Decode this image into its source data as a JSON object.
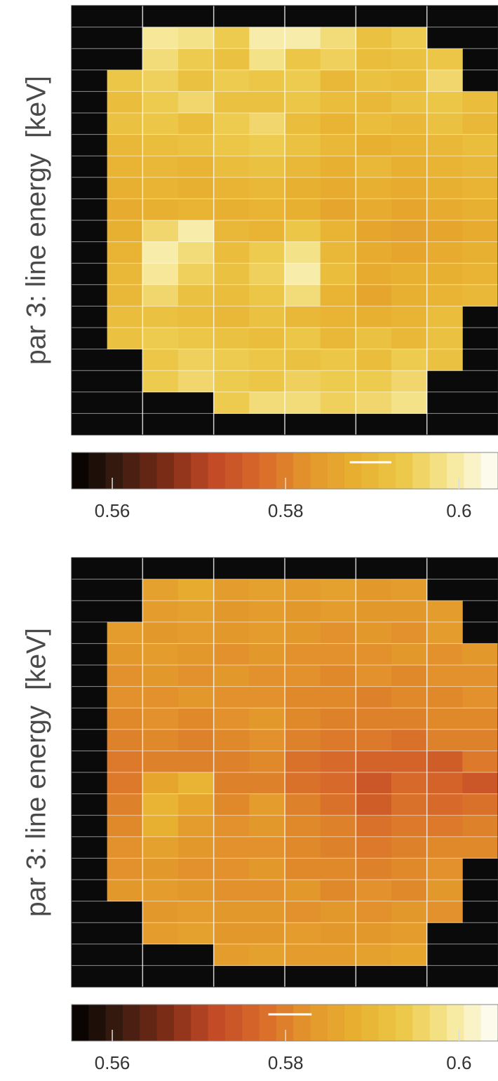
{
  "chart_data": [
    {
      "type": "heatmap",
      "ylabel": "par 3: line energy  [keV]",
      "grid": true,
      "clim": [
        0.5553,
        0.6045
      ],
      "colorbar_ticks": [
        0.56,
        0.58,
        0.6
      ],
      "colorbar_levels": 25,
      "colormap": [
        "#000000",
        "#3a1c10",
        "#7c2c16",
        "#c24a26",
        "#d86a2a",
        "#e3962c",
        "#e8b030",
        "#ecc848",
        "#f6e898",
        "#ffffff"
      ],
      "mean_marker": 0.5898,
      "mean_marker_halfwidth": 0.0024,
      "values": [
        [
          null,
          null,
          null,
          null,
          null,
          null,
          null,
          null,
          null,
          null,
          null,
          null
        ],
        [
          null,
          null,
          0.599,
          0.598,
          0.594,
          0.6,
          0.6,
          0.597,
          0.592,
          0.594,
          null,
          null
        ],
        [
          null,
          null,
          0.597,
          0.594,
          0.592,
          0.598,
          0.593,
          0.595,
          0.591,
          0.592,
          0.593,
          null
        ],
        [
          null,
          0.593,
          0.595,
          0.592,
          0.594,
          0.593,
          0.594,
          0.59,
          0.592,
          0.591,
          0.596,
          null
        ],
        [
          null,
          0.591,
          0.594,
          0.596,
          0.592,
          0.592,
          0.593,
          0.591,
          0.59,
          0.592,
          0.593,
          0.591
        ],
        [
          null,
          0.592,
          0.593,
          0.591,
          0.594,
          0.596,
          0.591,
          0.589,
          0.591,
          0.59,
          0.592,
          0.59
        ],
        [
          null,
          0.59,
          0.591,
          0.592,
          0.593,
          0.594,
          0.592,
          0.59,
          0.588,
          0.589,
          0.59,
          0.591
        ],
        [
          null,
          0.589,
          0.59,
          0.589,
          0.591,
          0.592,
          0.59,
          0.588,
          0.59,
          0.588,
          0.589,
          0.59
        ],
        [
          null,
          0.588,
          0.589,
          0.588,
          0.589,
          0.59,
          0.588,
          0.587,
          0.588,
          0.587,
          0.588,
          0.589
        ],
        [
          null,
          0.587,
          0.588,
          0.589,
          0.588,
          0.589,
          0.588,
          0.586,
          0.587,
          0.586,
          0.587,
          0.588
        ],
        [
          null,
          0.588,
          0.596,
          0.6,
          0.59,
          0.589,
          0.593,
          0.589,
          0.586,
          0.585,
          0.586,
          0.587
        ],
        [
          null,
          0.589,
          0.6,
          0.597,
          0.591,
          0.594,
          0.598,
          0.59,
          0.587,
          0.586,
          0.587,
          0.588
        ],
        [
          null,
          0.59,
          0.599,
          0.595,
          0.592,
          0.595,
          0.6,
          0.591,
          0.587,
          0.588,
          0.588,
          0.589
        ],
        [
          null,
          0.59,
          0.596,
          0.592,
          0.591,
          0.593,
          0.597,
          0.589,
          0.586,
          0.588,
          0.589,
          0.59
        ],
        [
          null,
          0.591,
          0.592,
          0.591,
          0.59,
          0.592,
          0.59,
          0.589,
          0.588,
          0.589,
          0.591,
          null
        ],
        [
          null,
          0.592,
          0.594,
          0.593,
          0.592,
          0.591,
          0.593,
          0.59,
          0.592,
          0.59,
          0.592,
          null
        ],
        [
          null,
          null,
          0.593,
          0.595,
          0.594,
          0.593,
          0.592,
          0.593,
          0.591,
          0.594,
          0.592,
          null
        ],
        [
          null,
          null,
          0.594,
          0.596,
          0.594,
          0.593,
          0.595,
          0.594,
          0.594,
          0.596,
          null,
          null
        ],
        [
          null,
          null,
          null,
          null,
          0.594,
          0.597,
          0.597,
          0.595,
          0.596,
          0.598,
          null,
          null
        ],
        [
          null,
          null,
          null,
          null,
          null,
          null,
          null,
          null,
          null,
          null,
          null,
          null
        ]
      ]
    },
    {
      "type": "heatmap",
      "ylabel": "par 3: line energy  [keV]",
      "grid": true,
      "clim": [
        0.5553,
        0.6045
      ],
      "colorbar_ticks": [
        0.56,
        0.58,
        0.6
      ],
      "colorbar_levels": 25,
      "colormap": [
        "#000000",
        "#3a1c10",
        "#7c2c16",
        "#c24a26",
        "#d86a2a",
        "#e3962c",
        "#e8b030",
        "#ecc848",
        "#f6e898",
        "#ffffff"
      ],
      "mean_marker": 0.5805,
      "mean_marker_halfwidth": 0.0025,
      "values": [
        [
          null,
          null,
          null,
          null,
          null,
          null,
          null,
          null,
          null,
          null,
          null,
          null
        ],
        [
          null,
          null,
          0.585,
          0.587,
          0.584,
          0.585,
          0.584,
          0.585,
          0.583,
          0.584,
          null,
          null
        ],
        [
          null,
          null,
          0.584,
          0.585,
          0.583,
          0.584,
          0.583,
          0.584,
          0.583,
          0.583,
          0.584,
          null
        ],
        [
          null,
          0.584,
          0.583,
          0.584,
          0.583,
          0.584,
          0.583,
          0.582,
          0.583,
          0.582,
          0.584,
          null
        ],
        [
          null,
          0.583,
          0.584,
          0.583,
          0.582,
          0.583,
          0.582,
          0.582,
          0.582,
          0.583,
          0.582,
          0.583
        ],
        [
          null,
          0.582,
          0.583,
          0.582,
          0.583,
          0.582,
          0.582,
          0.581,
          0.582,
          0.581,
          0.582,
          0.582
        ],
        [
          null,
          0.582,
          0.582,
          0.583,
          0.582,
          0.582,
          0.581,
          0.581,
          0.58,
          0.581,
          0.581,
          0.582
        ],
        [
          null,
          0.581,
          0.582,
          0.581,
          0.582,
          0.583,
          0.581,
          0.58,
          0.58,
          0.58,
          0.581,
          0.581
        ],
        [
          null,
          0.58,
          0.581,
          0.58,
          0.581,
          0.582,
          0.58,
          0.579,
          0.579,
          0.578,
          0.58,
          0.58
        ],
        [
          null,
          0.579,
          0.58,
          0.58,
          0.58,
          0.581,
          0.578,
          0.577,
          0.576,
          0.576,
          0.575,
          0.579
        ],
        [
          null,
          0.579,
          0.586,
          0.589,
          0.58,
          0.58,
          0.578,
          0.577,
          0.574,
          0.577,
          0.576,
          0.574
        ],
        [
          null,
          0.58,
          0.589,
          0.586,
          0.581,
          0.584,
          0.58,
          0.578,
          0.575,
          0.578,
          0.577,
          0.578
        ],
        [
          null,
          0.581,
          0.588,
          0.584,
          0.582,
          0.583,
          0.581,
          0.58,
          0.578,
          0.579,
          0.579,
          0.58
        ],
        [
          null,
          0.582,
          0.585,
          0.583,
          0.582,
          0.582,
          0.581,
          0.58,
          0.579,
          0.58,
          0.581,
          0.581
        ],
        [
          null,
          0.582,
          0.583,
          0.582,
          0.582,
          0.583,
          0.581,
          0.581,
          0.58,
          0.581,
          0.582,
          null
        ],
        [
          null,
          0.583,
          0.584,
          0.583,
          0.582,
          0.582,
          0.583,
          0.581,
          0.582,
          0.581,
          0.583,
          null
        ],
        [
          null,
          null,
          0.583,
          0.584,
          0.583,
          0.583,
          0.582,
          0.583,
          0.582,
          0.583,
          0.582,
          null
        ],
        [
          null,
          null,
          0.584,
          0.585,
          0.583,
          0.583,
          0.584,
          0.583,
          0.583,
          0.584,
          null,
          null
        ],
        [
          null,
          null,
          null,
          null,
          0.584,
          0.585,
          0.584,
          0.584,
          0.585,
          0.586,
          null,
          null
        ],
        [
          null,
          null,
          null,
          null,
          null,
          null,
          null,
          null,
          null,
          null,
          null,
          null
        ]
      ]
    }
  ]
}
